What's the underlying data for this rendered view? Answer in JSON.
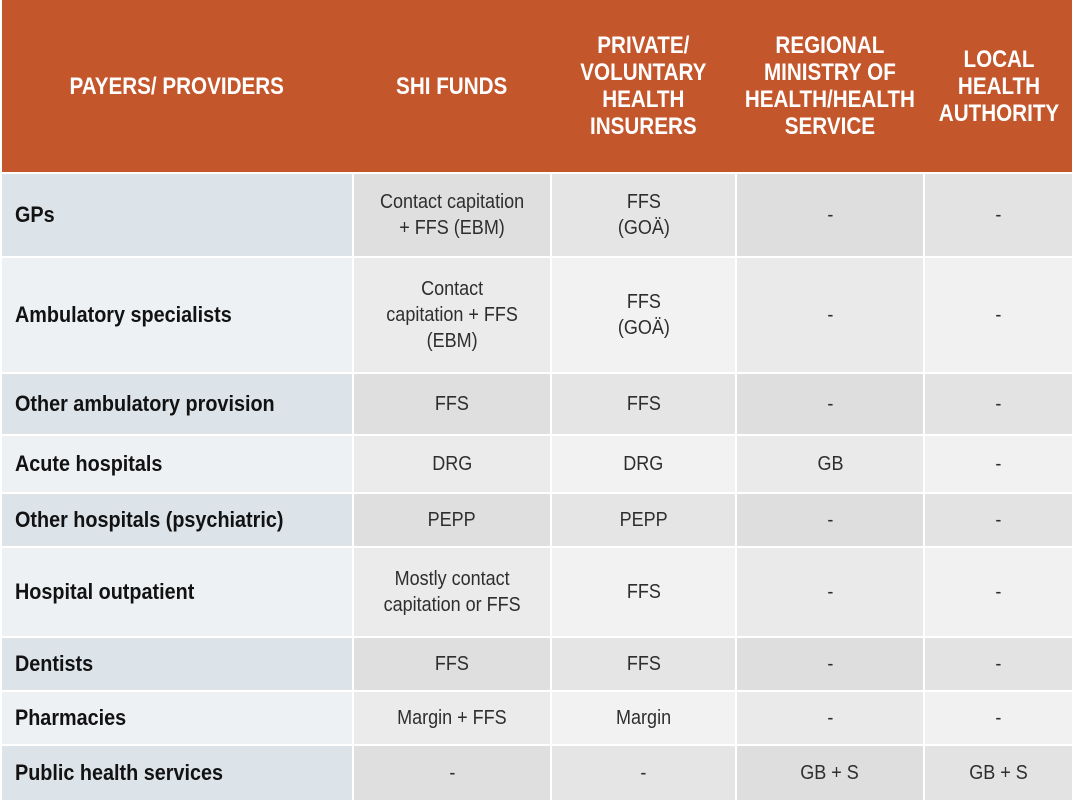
{
  "table": {
    "header": {
      "columns": [
        {
          "label": "PAYERS/ PROVIDERS"
        },
        {
          "label": "SHI FUNDS"
        },
        {
          "label": "PRIVATE/\nVOLUNTARY\nHEALTH\nINSURERS"
        },
        {
          "label": "REGIONAL\nMINISTRY OF\nHEALTH/HEALTH\nSERVICE"
        },
        {
          "label": "LOCAL\nHEALTH\nAUTHORITY"
        }
      ]
    },
    "rows": [
      {
        "provider": "GPs",
        "values": [
          "Contact capitation\n+ FFS (EBM)",
          "FFS\n(GOÄ)",
          "-",
          "-"
        ]
      },
      {
        "provider": "Ambulatory specialists",
        "values": [
          "Contact\ncapitation + FFS\n(EBM)",
          "FFS\n(GOÄ)",
          "-",
          "-"
        ]
      },
      {
        "provider": "Other ambulatory provision",
        "values": [
          "FFS",
          "FFS",
          "-",
          "-"
        ]
      },
      {
        "provider": "Acute hospitals",
        "values": [
          "DRG",
          "DRG",
          "GB",
          "-"
        ]
      },
      {
        "provider": "Other hospitals (psychiatric)",
        "values": [
          "PEPP",
          "PEPP",
          "-",
          "-"
        ]
      },
      {
        "provider": "Hospital outpatient",
        "values": [
          "Mostly contact\ncapitation or FFS",
          "FFS",
          "-",
          "-"
        ]
      },
      {
        "provider": "Dentists",
        "values": [
          "FFS",
          "FFS",
          "-",
          "-"
        ]
      },
      {
        "provider": "Pharmacies",
        "values": [
          "Margin + FFS",
          "Margin",
          "-",
          "-"
        ]
      },
      {
        "provider": "Public health services",
        "values": [
          "-",
          "-",
          "GB + S",
          "GB + S"
        ]
      }
    ]
  },
  "palette": {
    "header_bg": "#c4562c",
    "header_text": "#ffffff",
    "label_text": "#121212",
    "value_text": "#2e2e2e",
    "c1_dark": "#dce3e9",
    "c1_light": "#eef1f4",
    "c2_dark": "#dfdfe0",
    "c2_light": "#ebebec",
    "c3_dark": "#e5e5e5",
    "c3_light": "#f2f2f2",
    "c4_dark": "#dedede",
    "c4_light": "#eaeaea",
    "c5_dark": "#e3e3e3",
    "c5_light": "#f1f1f1"
  }
}
